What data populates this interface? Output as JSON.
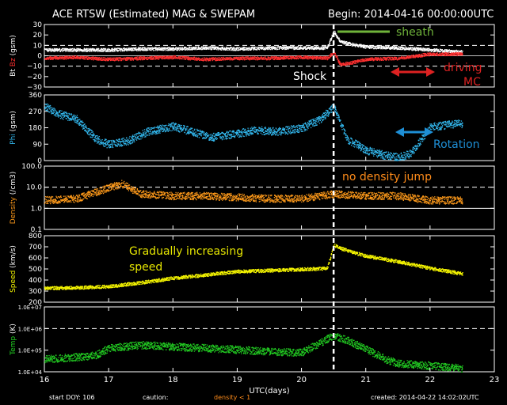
{
  "header": {
    "title": "ACE RTSW (Estimated) MAG & SWEPAM",
    "begin": "Begin: 2014-04-16 00:00:00UTC"
  },
  "footer": {
    "start_doy": "start DOY: 106",
    "caution": "caution:",
    "density_note": "density < 1",
    "created": "created: 2014-04-22 14:02:02UTC"
  },
  "colors": {
    "bt": "#ffffff",
    "bz": "#ff3030",
    "phi": "#33b8ee",
    "density": "#ff9a1a",
    "speed": "#f5f500",
    "temp": "#22cc22",
    "annot_red": "#dd2222",
    "annot_green": "#6fb33a",
    "annot_blue": "#1e8fd6",
    "annot_yellow": "#e6e600",
    "annot_orange": "#ff8c1a"
  },
  "chart_data": {
    "type": "scatter",
    "xlabel": "UTC(days)",
    "xlim": [
      16,
      23
    ],
    "xticks": [
      "16",
      "17",
      "18",
      "19",
      "20",
      "21",
      "22",
      "23"
    ],
    "shock_day": 20.5,
    "panels": [
      {
        "key": "mag",
        "ylabel_parts": [
          "Bt",
          "Bz",
          "(gsm)"
        ],
        "ylim": [
          -30,
          30
        ],
        "scale": "linear",
        "yticks": [
          "30",
          "20",
          "10",
          "0",
          "−10",
          "−20",
          "−30"
        ],
        "ytick_values": [
          30,
          20,
          10,
          0,
          -10,
          -20,
          -30
        ],
        "dashed": [
          10,
          -10
        ],
        "series": [
          {
            "name": "Bt",
            "x": [
              16.0,
              16.5,
              17.0,
              17.5,
              18.0,
              18.5,
              19.0,
              19.5,
              20.0,
              20.4,
              20.5,
              20.6,
              20.8,
              21.0,
              21.5,
              22.0,
              22.5
            ],
            "y": [
              6,
              6,
              6,
              7,
              7,
              8,
              7,
              8,
              8,
              8,
              24,
              14,
              11,
              9,
              8,
              6,
              4
            ]
          },
          {
            "name": "Bz",
            "x": [
              16.0,
              16.5,
              17.0,
              17.5,
              18.0,
              18.5,
              19.0,
              19.5,
              20.0,
              20.4,
              20.5,
              20.6,
              20.8,
              21.0,
              21.5,
              22.0,
              22.5
            ],
            "y": [
              -2,
              -1,
              -3,
              -2,
              -1,
              -3,
              -2,
              -2,
              -1,
              -2,
              4,
              -8,
              -6,
              -3,
              -2,
              2,
              2
            ]
          }
        ]
      },
      {
        "key": "phi",
        "ylabel_parts": [
          "Phi",
          "(gsm)"
        ],
        "ylim": [
          0,
          360
        ],
        "scale": "linear",
        "yticks": [
          "360",
          "270",
          "180",
          "90",
          "0"
        ],
        "ytick_values": [
          360,
          270,
          180,
          90,
          0
        ],
        "dashed": [],
        "series": [
          {
            "name": "Phi",
            "x": [
              16.0,
              16.2,
              16.5,
              16.8,
              17.0,
              17.3,
              17.6,
              18.0,
              18.3,
              18.6,
              19.0,
              19.3,
              19.6,
              20.0,
              20.3,
              20.5,
              20.7,
              21.0,
              21.3,
              21.5,
              21.7,
              22.0,
              22.3,
              22.5
            ],
            "y": [
              300,
              260,
              230,
              120,
              90,
              110,
              160,
              190,
              160,
              130,
              150,
              170,
              160,
              180,
              230,
              300,
              120,
              60,
              30,
              20,
              40,
              185,
              200,
              205
            ]
          }
        ]
      },
      {
        "key": "density",
        "ylabel_parts": [
          "Density",
          "(/cm3)"
        ],
        "ylim": [
          0.1,
          100
        ],
        "scale": "log",
        "yticks": [
          "100.0",
          "10.0",
          "1.0",
          "0.1"
        ],
        "ytick_values": [
          100,
          10,
          1,
          0.1
        ],
        "dashed": [
          10
        ],
        "solid": [
          1
        ],
        "series": [
          {
            "name": "Density",
            "x": [
              16.0,
              16.5,
              16.8,
              17.0,
              17.2,
              17.5,
              18.0,
              18.5,
              19.0,
              19.5,
              20.0,
              20.5,
              21.0,
              21.5,
              22.0,
              22.5
            ],
            "y": [
              2.5,
              3,
              6,
              10,
              15,
              5,
              4,
              4,
              3.5,
              3,
              3,
              5,
              4,
              4,
              2.5,
              2.5
            ]
          }
        ]
      },
      {
        "key": "speed",
        "ylabel_parts": [
          "Speed",
          "(km/s)"
        ],
        "ylim": [
          200,
          800
        ],
        "scale": "linear",
        "yticks": [
          "800",
          "700",
          "600",
          "500",
          "400",
          "300",
          "200"
        ],
        "ytick_values": [
          800,
          700,
          600,
          500,
          400,
          300,
          200
        ],
        "dashed": [],
        "series": [
          {
            "name": "Speed",
            "x": [
              16.0,
              16.5,
              17.0,
              17.5,
              18.0,
              18.5,
              19.0,
              19.5,
              20.0,
              20.4,
              20.5,
              20.6,
              21.0,
              21.5,
              22.0,
              22.5
            ],
            "y": [
              330,
              335,
              345,
              380,
              420,
              450,
              480,
              490,
              500,
              510,
              720,
              690,
              620,
              570,
              510,
              460
            ]
          }
        ]
      },
      {
        "key": "temp",
        "ylabel_parts": [
          "Temp",
          "(K)"
        ],
        "ylim": [
          10000,
          10000000
        ],
        "scale": "log",
        "yticks": [
          "1.0E+07",
          "1.0E+06",
          "1.0E+05",
          "1.0E+04"
        ],
        "ytick_values": [
          10000000,
          1000000,
          100000,
          10000
        ],
        "dashed": [
          1000000
        ],
        "series": [
          {
            "name": "Temp",
            "x": [
              16.0,
              16.5,
              16.8,
              17.0,
              17.5,
              18.0,
              18.5,
              19.0,
              19.5,
              20.0,
              20.5,
              20.7,
              21.0,
              21.3,
              21.5,
              22.0,
              22.5
            ],
            "y": [
              40000,
              50000,
              60000,
              130000,
              180000,
              150000,
              130000,
              110000,
              90000,
              80000,
              500000,
              300000,
              120000,
              40000,
              25000,
              20000,
              15000
            ]
          }
        ]
      }
    ]
  },
  "annotations": {
    "shock": "Shock",
    "sheath": "sheath",
    "driving": "driving",
    "mc": "MC",
    "rotation": "Rotation",
    "no_density_jump": "no density jump",
    "gradual_line1": "Gradually increasing",
    "gradual_line2": "speed"
  }
}
